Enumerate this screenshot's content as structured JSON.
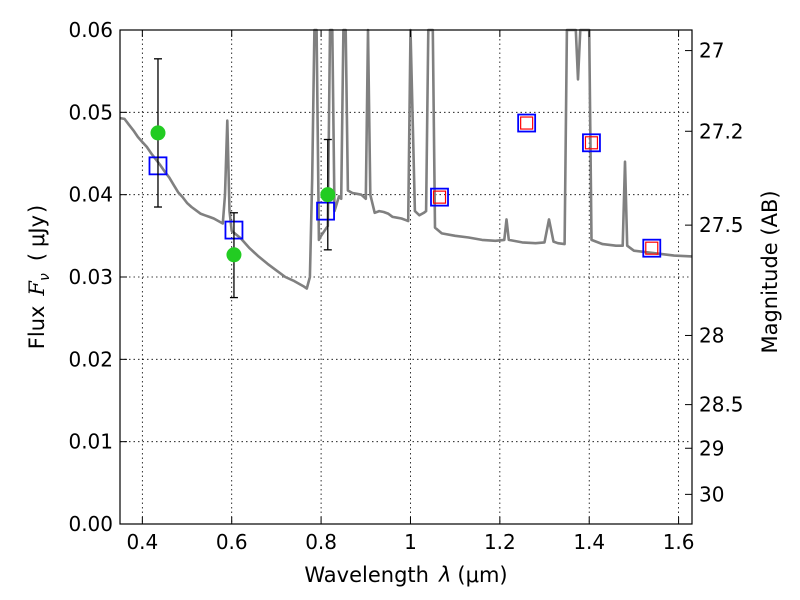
{
  "chart_data": {
    "type": "line",
    "title": "",
    "xlabel_text": "Wavelength",
    "xlabel_symbol": "λ",
    "xlabel_unit": "(μm)",
    "ylabel_text": "Flux",
    "ylabel_symbol": "F",
    "ylabel_subscript": "ν",
    "ylabel_unit_open": "(",
    "ylabel_unit": "μJy",
    "ylabel_unit_close": ")",
    "y2label": "Magnitude (AB)",
    "xlim": [
      0.35,
      1.63
    ],
    "ylim": [
      0.0,
      0.06
    ],
    "x_ticks": [
      0.4,
      0.6,
      0.8,
      1.0,
      1.2,
      1.4,
      1.6
    ],
    "x_tick_labels": [
      "0.4",
      "0.6",
      "0.8",
      "1",
      "1.2",
      "1.4",
      "1.6"
    ],
    "y_ticks": [
      0.0,
      0.01,
      0.02,
      0.03,
      0.04,
      0.05,
      0.06
    ],
    "y_tick_labels": [
      "0.00",
      "0.01",
      "0.02",
      "0.03",
      "0.04",
      "0.05",
      "0.06"
    ],
    "y2_ticks": [
      {
        "flux": 0.0575,
        "label": "27"
      },
      {
        "flux": 0.0477,
        "label": "27.2"
      },
      {
        "flux": 0.0363,
        "label": "27.5"
      },
      {
        "flux": 0.0229,
        "label": "28"
      },
      {
        "flux": 0.0145,
        "label": "28.5"
      },
      {
        "flux": 0.0092,
        "label": "29"
      },
      {
        "flux": 0.0036,
        "label": "30"
      }
    ],
    "grid": true,
    "colors": {
      "spectrum": "#808080",
      "observed": "#22cc22",
      "model_box": "#0000ff",
      "inner_box": "#ff0000",
      "errorbar": "#000000"
    },
    "series": [
      {
        "name": "model spectrum",
        "type": "line",
        "points": [
          [
            0.35,
            0.0493
          ],
          [
            0.36,
            0.0492
          ],
          [
            0.37,
            0.0485
          ],
          [
            0.38,
            0.0478
          ],
          [
            0.39,
            0.047
          ],
          [
            0.4,
            0.0464
          ],
          [
            0.41,
            0.0458
          ],
          [
            0.42,
            0.045
          ],
          [
            0.43,
            0.0443
          ],
          [
            0.44,
            0.0436
          ],
          [
            0.45,
            0.0428
          ],
          [
            0.46,
            0.0421
          ],
          [
            0.47,
            0.0412
          ],
          [
            0.48,
            0.0403
          ],
          [
            0.49,
            0.0397
          ],
          [
            0.5,
            0.039
          ],
          [
            0.51,
            0.0385
          ],
          [
            0.52,
            0.0381
          ],
          [
            0.53,
            0.0377
          ],
          [
            0.54,
            0.0375
          ],
          [
            0.55,
            0.0373
          ],
          [
            0.56,
            0.0371
          ],
          [
            0.57,
            0.0368
          ],
          [
            0.58,
            0.0365
          ],
          [
            0.585,
            0.04
          ],
          [
            0.59,
            0.049
          ],
          [
            0.595,
            0.038
          ],
          [
            0.6,
            0.0356
          ],
          [
            0.62,
            0.0347
          ],
          [
            0.64,
            0.0335
          ],
          [
            0.66,
            0.0325
          ],
          [
            0.68,
            0.0316
          ],
          [
            0.7,
            0.0308
          ],
          [
            0.72,
            0.03
          ],
          [
            0.74,
            0.0295
          ],
          [
            0.76,
            0.0289
          ],
          [
            0.768,
            0.0286
          ],
          [
            0.775,
            0.03
          ],
          [
            0.78,
            0.042
          ],
          [
            0.785,
            0.06
          ],
          [
            0.79,
            0.06
          ],
          [
            0.795,
            0.0345
          ],
          [
            0.8,
            0.035
          ],
          [
            0.81,
            0.0358
          ],
          [
            0.815,
            0.0362
          ],
          [
            0.82,
            0.06
          ],
          [
            0.825,
            0.06
          ],
          [
            0.83,
            0.038
          ],
          [
            0.84,
            0.0398
          ],
          [
            0.845,
            0.0395
          ],
          [
            0.85,
            0.06
          ],
          [
            0.855,
            0.06
          ],
          [
            0.86,
            0.0405
          ],
          [
            0.87,
            0.0402
          ],
          [
            0.88,
            0.0401
          ],
          [
            0.89,
            0.04
          ],
          [
            0.9,
            0.0395
          ],
          [
            0.905,
            0.06
          ],
          [
            0.91,
            0.04
          ],
          [
            0.92,
            0.0378
          ],
          [
            0.93,
            0.038
          ],
          [
            0.94,
            0.0379
          ],
          [
            0.95,
            0.0377
          ],
          [
            0.96,
            0.0373
          ],
          [
            0.97,
            0.0372
          ],
          [
            0.98,
            0.0371
          ],
          [
            0.99,
            0.0369
          ],
          [
            0.995,
            0.0368
          ],
          [
            1.0,
            0.06
          ],
          [
            1.01,
            0.038
          ],
          [
            1.02,
            0.0375
          ],
          [
            1.03,
            0.0378
          ],
          [
            1.035,
            0.038
          ],
          [
            1.04,
            0.06
          ],
          [
            1.05,
            0.06
          ],
          [
            1.055,
            0.036
          ],
          [
            1.07,
            0.0353
          ],
          [
            1.1,
            0.035
          ],
          [
            1.13,
            0.0348
          ],
          [
            1.16,
            0.0345
          ],
          [
            1.19,
            0.0344
          ],
          [
            1.21,
            0.0345
          ],
          [
            1.215,
            0.037
          ],
          [
            1.22,
            0.0345
          ],
          [
            1.25,
            0.0342
          ],
          [
            1.28,
            0.0341
          ],
          [
            1.3,
            0.0342
          ],
          [
            1.31,
            0.037
          ],
          [
            1.32,
            0.0343
          ],
          [
            1.33,
            0.0341
          ],
          [
            1.345,
            0.034
          ],
          [
            1.35,
            0.06
          ],
          [
            1.37,
            0.06
          ],
          [
            1.375,
            0.054
          ],
          [
            1.38,
            0.06
          ],
          [
            1.4,
            0.06
          ],
          [
            1.405,
            0.0345
          ],
          [
            1.43,
            0.034
          ],
          [
            1.46,
            0.0338
          ],
          [
            1.475,
            0.0338
          ],
          [
            1.48,
            0.044
          ],
          [
            1.485,
            0.0338
          ],
          [
            1.5,
            0.0332
          ],
          [
            1.53,
            0.033
          ],
          [
            1.56,
            0.0328
          ],
          [
            1.59,
            0.0326
          ],
          [
            1.63,
            0.0325
          ]
        ]
      },
      {
        "name": "model photometry",
        "type": "scatter",
        "marker": "square",
        "points": [
          [
            0.435,
            0.0435
          ],
          [
            0.605,
            0.0357
          ],
          [
            0.81,
            0.038
          ],
          [
            1.065,
            0.0397
          ],
          [
            1.26,
            0.0487
          ],
          [
            1.405,
            0.0463
          ],
          [
            1.54,
            0.0335
          ]
        ]
      },
      {
        "name": "model photometry inner",
        "type": "scatter",
        "marker": "square-small",
        "points": [
          [
            1.065,
            0.0397
          ],
          [
            1.26,
            0.0487
          ],
          [
            1.405,
            0.0463
          ],
          [
            1.54,
            0.0335
          ]
        ]
      },
      {
        "name": "observed photometry",
        "type": "scatter",
        "marker": "circle",
        "points": [
          [
            0.435,
            0.0475,
            0.0385,
            0.0565
          ],
          [
            0.605,
            0.0327,
            0.0275,
            0.0378
          ],
          [
            0.815,
            0.04,
            0.0333,
            0.0467
          ]
        ]
      }
    ]
  }
}
